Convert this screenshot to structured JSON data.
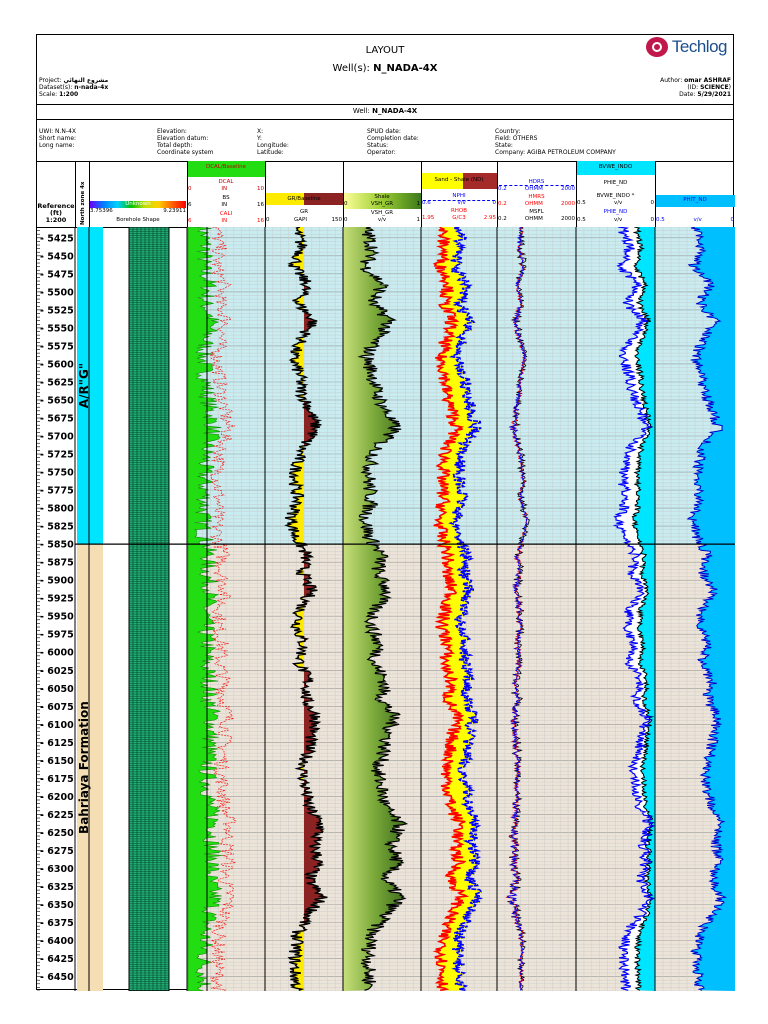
{
  "header": {
    "title": "LAYOUT",
    "wells_prefix": "Well(s): ",
    "well": "N_NADA-4X",
    "logo": "Techlog",
    "project_label": "Project:",
    "project_value": "مشروع النهائي",
    "dataset_label": "Dataset(s):",
    "dataset_value": "n-nada-4x",
    "scale_label": "Scale:",
    "scale_value": "1:200",
    "author_label": "Author:",
    "author_value": "omar ASHRAF",
    "id_label": "(ID:",
    "id_value": "SCIENCE",
    "id_close": ")",
    "date_label": "Date:",
    "date_value": "5/29/2021",
    "well_line_prefix": "Well: ",
    "well_line_value": "N_NADA-4X"
  },
  "info": {
    "col1": [
      "UWI: N.N-4X",
      "Short name:",
      "Long name:"
    ],
    "col2": [
      "Elevation:",
      "Elevation datum:",
      "Total depth:",
      "Coordinate system"
    ],
    "col3": [
      "X:",
      "Y:",
      "Longitude:",
      "Latitude:"
    ],
    "col4": [
      "SPUD date:",
      "Completion date:",
      "Status:",
      "Operator:"
    ],
    "col5": [
      "Country:",
      "Field: OTHERS",
      "State:",
      "Company: AGIBA PETROLEUM COMPANY"
    ]
  },
  "track_headers": {
    "reference": [
      "Reference",
      "(ft)",
      "1:200"
    ],
    "zone": "North zone 4x",
    "shape": {
      "legend": "Unknown",
      "left": "3.75396",
      "right": "9.23911",
      "title": "Borehole Shape"
    },
    "caliper": {
      "fill": "DCAL/Baseline",
      "curves": [
        {
          "name": "DCAL",
          "min": "0",
          "unit": "IN",
          "max": "10"
        },
        {
          "name": "BS",
          "min": "6",
          "unit": "IN",
          "max": "16"
        },
        {
          "name": "CALI",
          "min": "6",
          "unit": "IN",
          "max": "16"
        }
      ]
    },
    "gr": {
      "fill": "GR/Baseline",
      "name": "GR",
      "min": "0",
      "unit": "GAPI",
      "max": "150"
    },
    "vsh": {
      "fill": "Shale",
      "fill_left": "0",
      "fill_title": "VSH_GR",
      "fill_right": "1",
      "name": "VSH_GR",
      "min": "0",
      "unit": "v/v",
      "max": "1"
    },
    "dn": {
      "fill": "Sand - Shale (ND)",
      "curves": [
        {
          "name": "NPHI",
          "min": "0.6",
          "unit": "v/v",
          "max": "0"
        },
        {
          "name": "RHOB",
          "min": "1.95",
          "unit": "G/C3",
          "max": "2.95"
        }
      ]
    },
    "res": {
      "curves": [
        {
          "name": "HDRS",
          "min": "0.2",
          "unit": "OHMM",
          "max": "2000"
        },
        {
          "name": "HMRS",
          "min": "0.2",
          "unit": "OHMM",
          "max": "2000"
        },
        {
          "name": "MSFL",
          "min": "0.2",
          "unit": "OHMM",
          "max": "2000"
        }
      ]
    },
    "bvw": {
      "fill": "BVWE_INDO",
      "c1": "PHIE_ND",
      "c2": "BVWE_INDO *",
      "scale_min": "0.5",
      "unit": "v/v",
      "scale_max": "0",
      "c3": "PHIE_ND"
    },
    "phit": {
      "name": "PHIT_ND",
      "min": "0.5",
      "unit": "v/v",
      "max": "0"
    }
  },
  "zones": [
    {
      "name": "A/R\"G\"",
      "top": 5410,
      "bottom": 5850,
      "color": "#00e5ff"
    },
    {
      "name": "Bahriaya Formation",
      "top": 5850,
      "bottom": 6470,
      "color": "#f5deb3"
    }
  ],
  "chart_data": {
    "type": "line",
    "title": "LAYOUT",
    "depth_unit": "ft",
    "depth_range": [
      5410,
      6470
    ],
    "depth_ticks": [
      5425,
      5450,
      5475,
      5500,
      5525,
      5550,
      5575,
      5600,
      5625,
      5650,
      5675,
      5700,
      5725,
      5750,
      5775,
      5800,
      5825,
      5850,
      5875,
      5900,
      5925,
      5950,
      5975,
      6000,
      6025,
      6050,
      6075,
      6100,
      6125,
      6150,
      6175,
      6200,
      6225,
      6250,
      6275,
      6300,
      6325,
      6350,
      6375,
      6400,
      6425,
      6450
    ],
    "depth": [
      5415,
      5440,
      5465,
      5490,
      5515,
      5540,
      5565,
      5590,
      5615,
      5640,
      5665,
      5690,
      5715,
      5740,
      5765,
      5790,
      5815,
      5840,
      5865,
      5890,
      5915,
      5940,
      5965,
      5990,
      6015,
      6040,
      6065,
      6090,
      6115,
      6140,
      6165,
      6190,
      6215,
      6240,
      6265,
      6290,
      6315,
      6340,
      6365,
      6390,
      6415,
      6440,
      6465
    ],
    "series": [
      {
        "name": "GR",
        "color": "#000000",
        "range": [
          0,
          150
        ],
        "values": [
          60,
          72,
          55,
          82,
          62,
          95,
          70,
          52,
          66,
          70,
          88,
          100,
          72,
          60,
          58,
          62,
          50,
          58,
          80,
          72,
          90,
          68,
          62,
          74,
          66,
          84,
          78,
          100,
          90,
          82,
          72,
          78,
          84,
          110,
          94,
          104,
          84,
          110,
          84,
          62,
          58,
          56,
          60
        ]
      },
      {
        "name": "VSH_GR",
        "color": "#000000",
        "range": [
          0,
          1
        ],
        "values": [
          0.3,
          0.38,
          0.28,
          0.52,
          0.36,
          0.62,
          0.42,
          0.3,
          0.38,
          0.43,
          0.55,
          0.68,
          0.44,
          0.34,
          0.33,
          0.36,
          0.28,
          0.33,
          0.5,
          0.44,
          0.58,
          0.4,
          0.36,
          0.46,
          0.4,
          0.54,
          0.5,
          0.66,
          0.58,
          0.52,
          0.44,
          0.5,
          0.54,
          0.74,
          0.62,
          0.7,
          0.54,
          0.74,
          0.54,
          0.36,
          0.33,
          0.32,
          0.35
        ]
      },
      {
        "name": "NPHI",
        "color": "#0000ff",
        "range": [
          0.6,
          0
        ],
        "values": [
          0.3,
          0.28,
          0.34,
          0.24,
          0.3,
          0.22,
          0.27,
          0.33,
          0.26,
          0.24,
          0.2,
          0.16,
          0.28,
          0.29,
          0.3,
          0.27,
          0.33,
          0.3,
          0.24,
          0.26,
          0.22,
          0.27,
          0.3,
          0.24,
          0.26,
          0.22,
          0.24,
          0.18,
          0.22,
          0.24,
          0.27,
          0.24,
          0.22,
          0.16,
          0.2,
          0.18,
          0.22,
          0.14,
          0.22,
          0.3,
          0.31,
          0.3,
          0.29
        ]
      },
      {
        "name": "RHOB",
        "color": "#ff0000",
        "range": [
          1.95,
          2.95
        ],
        "values": [
          2.22,
          2.25,
          2.2,
          2.32,
          2.24,
          2.36,
          2.28,
          2.2,
          2.26,
          2.28,
          2.35,
          2.42,
          2.28,
          2.24,
          2.22,
          2.24,
          2.18,
          2.22,
          2.3,
          2.28,
          2.36,
          2.26,
          2.22,
          2.3,
          2.26,
          2.34,
          2.3,
          2.42,
          2.36,
          2.33,
          2.28,
          2.3,
          2.34,
          2.48,
          2.4,
          2.44,
          2.34,
          2.48,
          2.34,
          2.24,
          2.22,
          2.22,
          2.24
        ]
      },
      {
        "name": "HDRS",
        "color": "#000000",
        "range": [
          0.2,
          2000
        ],
        "log": true,
        "values": [
          3,
          2.5,
          4,
          1.8,
          3,
          1.5,
          2.5,
          5,
          3,
          2.5,
          1.8,
          1.4,
          2.5,
          3.5,
          4,
          3,
          6,
          4,
          2,
          2.5,
          1.6,
          2.5,
          3,
          2,
          2.5,
          1.7,
          2,
          1.4,
          1.6,
          1.8,
          2.2,
          2,
          1.7,
          1.3,
          1.5,
          1.4,
          1.7,
          1.2,
          1.7,
          3,
          3.5,
          3.2,
          3
        ]
      },
      {
        "name": "PHIE_ND",
        "color": "#0000ff",
        "range": [
          0.5,
          0
        ],
        "values": [
          0.2,
          0.16,
          0.22,
          0.1,
          0.18,
          0.07,
          0.14,
          0.21,
          0.16,
          0.14,
          0.09,
          0.05,
          0.15,
          0.19,
          0.2,
          0.18,
          0.23,
          0.2,
          0.12,
          0.15,
          0.08,
          0.16,
          0.18,
          0.12,
          0.16,
          0.09,
          0.12,
          0.05,
          0.08,
          0.1,
          0.14,
          0.12,
          0.09,
          0.03,
          0.07,
          0.05,
          0.09,
          0.03,
          0.09,
          0.18,
          0.2,
          0.19,
          0.18
        ]
      },
      {
        "name": "PHIT_ND",
        "color": "#0000cd",
        "range": [
          0.5,
          0
        ],
        "values": [
          0.24,
          0.21,
          0.26,
          0.15,
          0.22,
          0.12,
          0.19,
          0.25,
          0.21,
          0.19,
          0.14,
          0.1,
          0.2,
          0.23,
          0.24,
          0.22,
          0.27,
          0.24,
          0.17,
          0.2,
          0.13,
          0.21,
          0.22,
          0.17,
          0.21,
          0.14,
          0.17,
          0.1,
          0.13,
          0.15,
          0.19,
          0.17,
          0.14,
          0.08,
          0.12,
          0.1,
          0.14,
          0.08,
          0.14,
          0.22,
          0.24,
          0.23,
          0.22
        ]
      }
    ]
  }
}
